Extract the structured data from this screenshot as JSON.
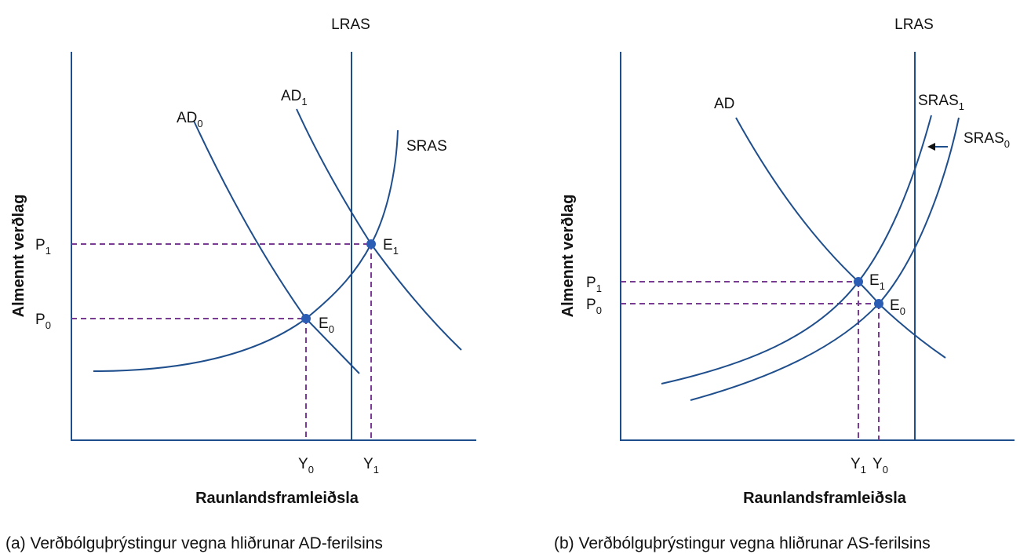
{
  "panel_a": {
    "lras": "LRAS",
    "ad0": {
      "main": "AD",
      "sub": "0"
    },
    "ad1": {
      "main": "AD",
      "sub": "1"
    },
    "sras": "SRAS",
    "p1": {
      "main": "P",
      "sub": "1"
    },
    "p0": {
      "main": "P",
      "sub": "0"
    },
    "e1": {
      "main": "E",
      "sub": "1"
    },
    "e0": {
      "main": "E",
      "sub": "0"
    },
    "y0": {
      "main": "Y",
      "sub": "0"
    },
    "y1": {
      "main": "Y",
      "sub": "1"
    },
    "ylabel": "Almennt verðlag",
    "xlabel": "Raunlandsframleiðsla",
    "caption": "(a) Verðbólguþrýstingur vegna hliðrunar AD-ferilsins"
  },
  "panel_b": {
    "lras": "LRAS",
    "ad": "AD",
    "sras1": {
      "main": "SRAS",
      "sub": "1"
    },
    "sras0": {
      "main": "SRAS",
      "sub": "0"
    },
    "p1": {
      "main": "P",
      "sub": "1"
    },
    "p0": {
      "main": "P",
      "sub": "0"
    },
    "e1": {
      "main": "E",
      "sub": "1"
    },
    "e0": {
      "main": "E",
      "sub": "0"
    },
    "y1": {
      "main": "Y",
      "sub": "1"
    },
    "y0": {
      "main": "Y",
      "sub": "0"
    },
    "ylabel": "Almennt verðlag",
    "xlabel": "Raunlandsframleiðsla",
    "caption": "(b) Verðbólguþrýstingur vegna hliðrunar AS-ferilsins"
  },
  "colors": {
    "curve": "#1f4e8c",
    "dashed_guide": "#7b3a96",
    "point": "#2b5db5"
  }
}
